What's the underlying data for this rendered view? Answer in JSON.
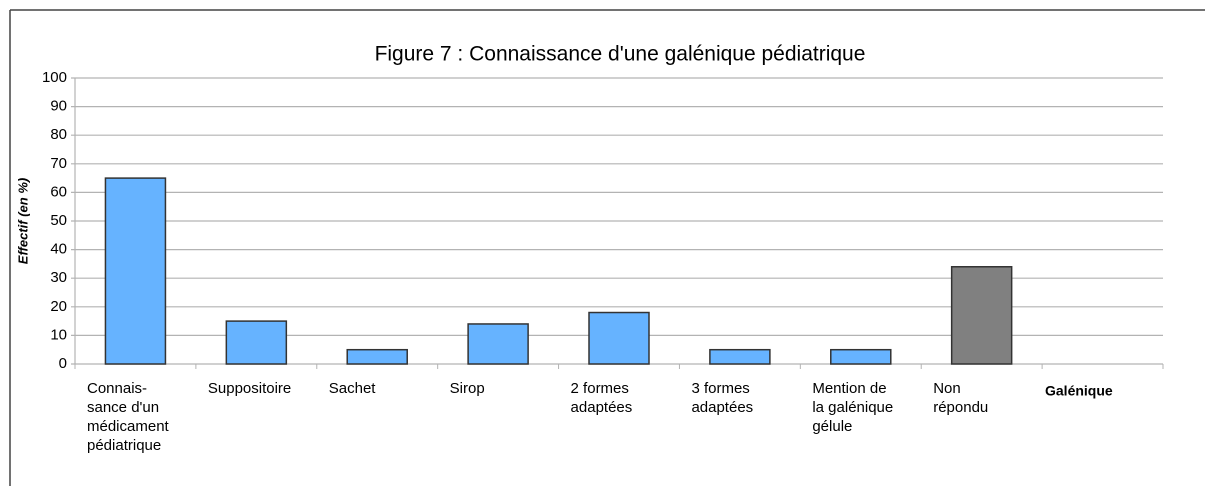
{
  "chart_data": {
    "type": "bar",
    "title": "Figure 7 : Connaissance d'une galénique pédiatrique",
    "ylabel": "Effectif (en %)",
    "xlabel": "Galénique",
    "categories": [
      "Connais-\nsance d'un\nmédicament\npédiatrique",
      "Suppositoire",
      "Sachet",
      "Sirop",
      "2 formes\nadaptées",
      "3 formes\nadaptées",
      "Mention de\nla galénique\ngélule",
      "Non\nrépondu"
    ],
    "values": [
      65,
      15,
      5,
      14,
      18,
      5,
      5,
      34
    ],
    "colors": [
      "#66b3ff",
      "#66b3ff",
      "#66b3ff",
      "#66b3ff",
      "#66b3ff",
      "#66b3ff",
      "#66b3ff",
      "#808080"
    ],
    "ylim": [
      0,
      100
    ],
    "yticks": [
      0,
      10,
      20,
      30,
      40,
      50,
      60,
      70,
      80,
      90,
      100
    ],
    "grid": true
  }
}
